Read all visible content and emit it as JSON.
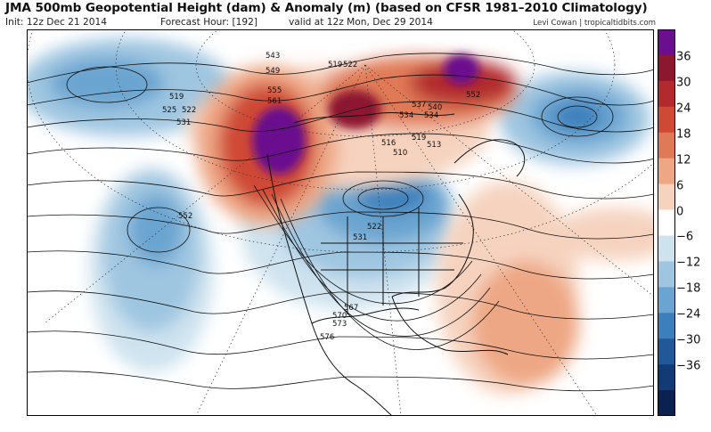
{
  "header": {
    "title": "JMA 500mb Geopotential Height (dam) & Anomaly (m) (based on CFSR 1981–2010 Climatology)",
    "init": "Init: 12z Dec 21 2014",
    "forecast_hour": "Forecast Hour: [192]",
    "valid": "valid at 12z Mon, Dec 29 2014",
    "credit": "Levi Cowan | tropicaltidbits.com"
  },
  "map": {
    "contour_labels": [
      "543",
      "549",
      "519",
      "522",
      "519",
      "525",
      "522",
      "531",
      "555",
      "561",
      "537",
      "534",
      "540",
      "534",
      "552",
      "552",
      "516",
      "510",
      "519",
      "513",
      "522",
      "531",
      "567",
      "570",
      "573",
      "576"
    ]
  },
  "colorbar": {
    "labels": [
      "36",
      "30",
      "24",
      "18",
      "12",
      "6",
      "0",
      "−6",
      "−12",
      "−18",
      "−24",
      "−30",
      "−36"
    ],
    "colors": [
      "#6a0f8e",
      "#8e1730",
      "#b22a2e",
      "#cf4a34",
      "#e07a56",
      "#eea784",
      "#f6d3bf",
      "#ffffff",
      "#cfe3ef",
      "#9fc6e1",
      "#6aa4d0",
      "#3b7fbc",
      "#21589a",
      "#123a75",
      "#0b2150"
    ]
  }
}
